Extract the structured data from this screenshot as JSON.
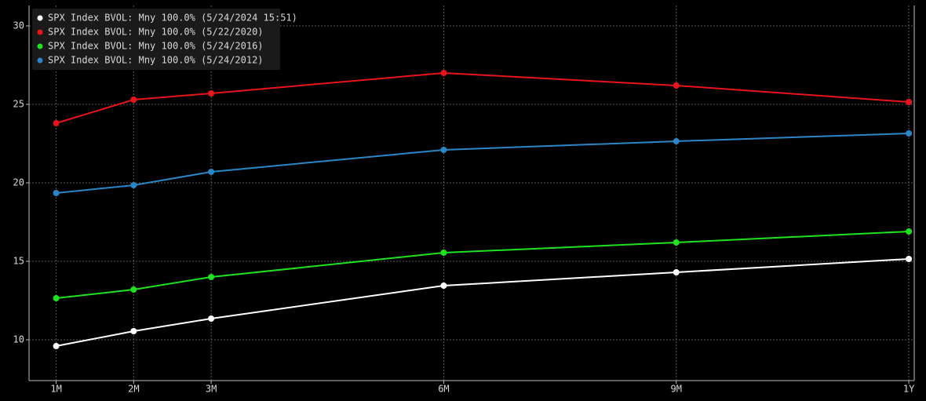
{
  "chart_data": {
    "type": "line",
    "x": [
      1,
      2,
      3,
      6,
      9,
      12
    ],
    "xlim": [
      0.65,
      12.07
    ],
    "xticks": [
      {
        "value": 1,
        "label": "1M"
      },
      {
        "value": 2,
        "label": "2M"
      },
      {
        "value": 3,
        "label": "3M"
      },
      {
        "value": 6,
        "label": "6M"
      },
      {
        "value": 9,
        "label": "9M"
      },
      {
        "value": 12,
        "label": "1Y"
      }
    ],
    "ylim": [
      7.4,
      31.3
    ],
    "yticks": [
      10,
      15,
      20,
      25,
      30
    ],
    "grid": true,
    "legend": "top-left",
    "series": [
      {
        "name": "SPX Index BVOL: Mny 100.0% (5/24/2024 15:51)",
        "color": "#ffffff",
        "values": [
          9.6,
          10.55,
          11.35,
          13.45,
          14.3,
          15.15
        ]
      },
      {
        "name": "SPX Index BVOL: Mny 100.0% (5/22/2020)",
        "color": "#e8141b",
        "values": [
          23.8,
          25.3,
          25.7,
          27.0,
          26.2,
          25.15
        ]
      },
      {
        "name": "SPX Index BVOL: Mny 100.0% (5/24/2016)",
        "color": "#1fe11f",
        "values": [
          12.65,
          13.2,
          14.0,
          15.55,
          16.2,
          16.9
        ]
      },
      {
        "name": "SPX Index BVOL: Mny 100.0% (5/24/2012)",
        "color": "#2a86c6",
        "values": [
          19.35,
          19.85,
          20.7,
          22.1,
          22.65,
          23.15
        ]
      }
    ]
  }
}
